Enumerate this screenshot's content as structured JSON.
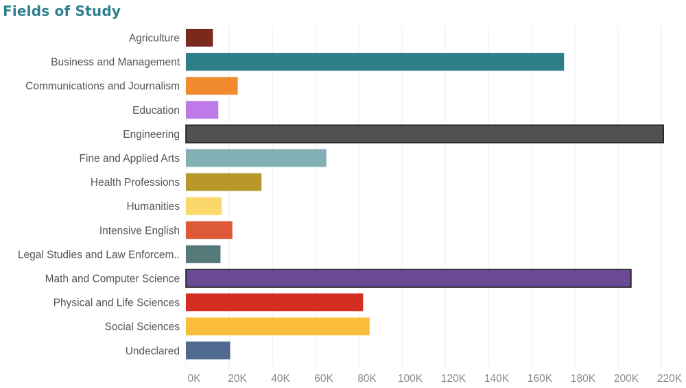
{
  "chart_data": {
    "type": "bar",
    "orientation": "horizontal",
    "title": "Fields of Study",
    "xlabel": "",
    "ylabel": "",
    "xlim": [
      0,
      225000
    ],
    "grid": true,
    "legend": "none",
    "tick_values": [
      0,
      20000,
      40000,
      60000,
      80000,
      100000,
      120000,
      140000,
      160000,
      180000,
      200000,
      220000
    ],
    "tick_labels": [
      "0K",
      "20K",
      "40K",
      "60K",
      "80K",
      "100K",
      "120K",
      "140K",
      "160K",
      "180K",
      "200K",
      "220K"
    ],
    "categories": [
      "Agriculture",
      "Business and Management",
      "Communications and Journalism",
      "Education",
      "Engineering",
      "Fine and Applied Arts",
      "Health Professions",
      "Humanities",
      "Intensive English",
      "Legal Studies and Law Enforcem..",
      "Math and Computer Science",
      "Physical and Life Sciences",
      "Social Sciences",
      "Undeclared"
    ],
    "values": [
      12500,
      175000,
      24000,
      15000,
      221000,
      65000,
      35000,
      16500,
      21500,
      16000,
      206000,
      82000,
      85000,
      20500
    ],
    "colors": [
      "#7a2a1c",
      "#2f7f88",
      "#f28b30",
      "#bd7ae8",
      "#505050",
      "#82b0b4",
      "#b8982a",
      "#fcd86a",
      "#de5a36",
      "#557978",
      "#6a4a92",
      "#d42e22",
      "#fbbd3c",
      "#4f6990"
    ],
    "highlighted": [
      "Engineering",
      "Math and Computer Science"
    ]
  }
}
